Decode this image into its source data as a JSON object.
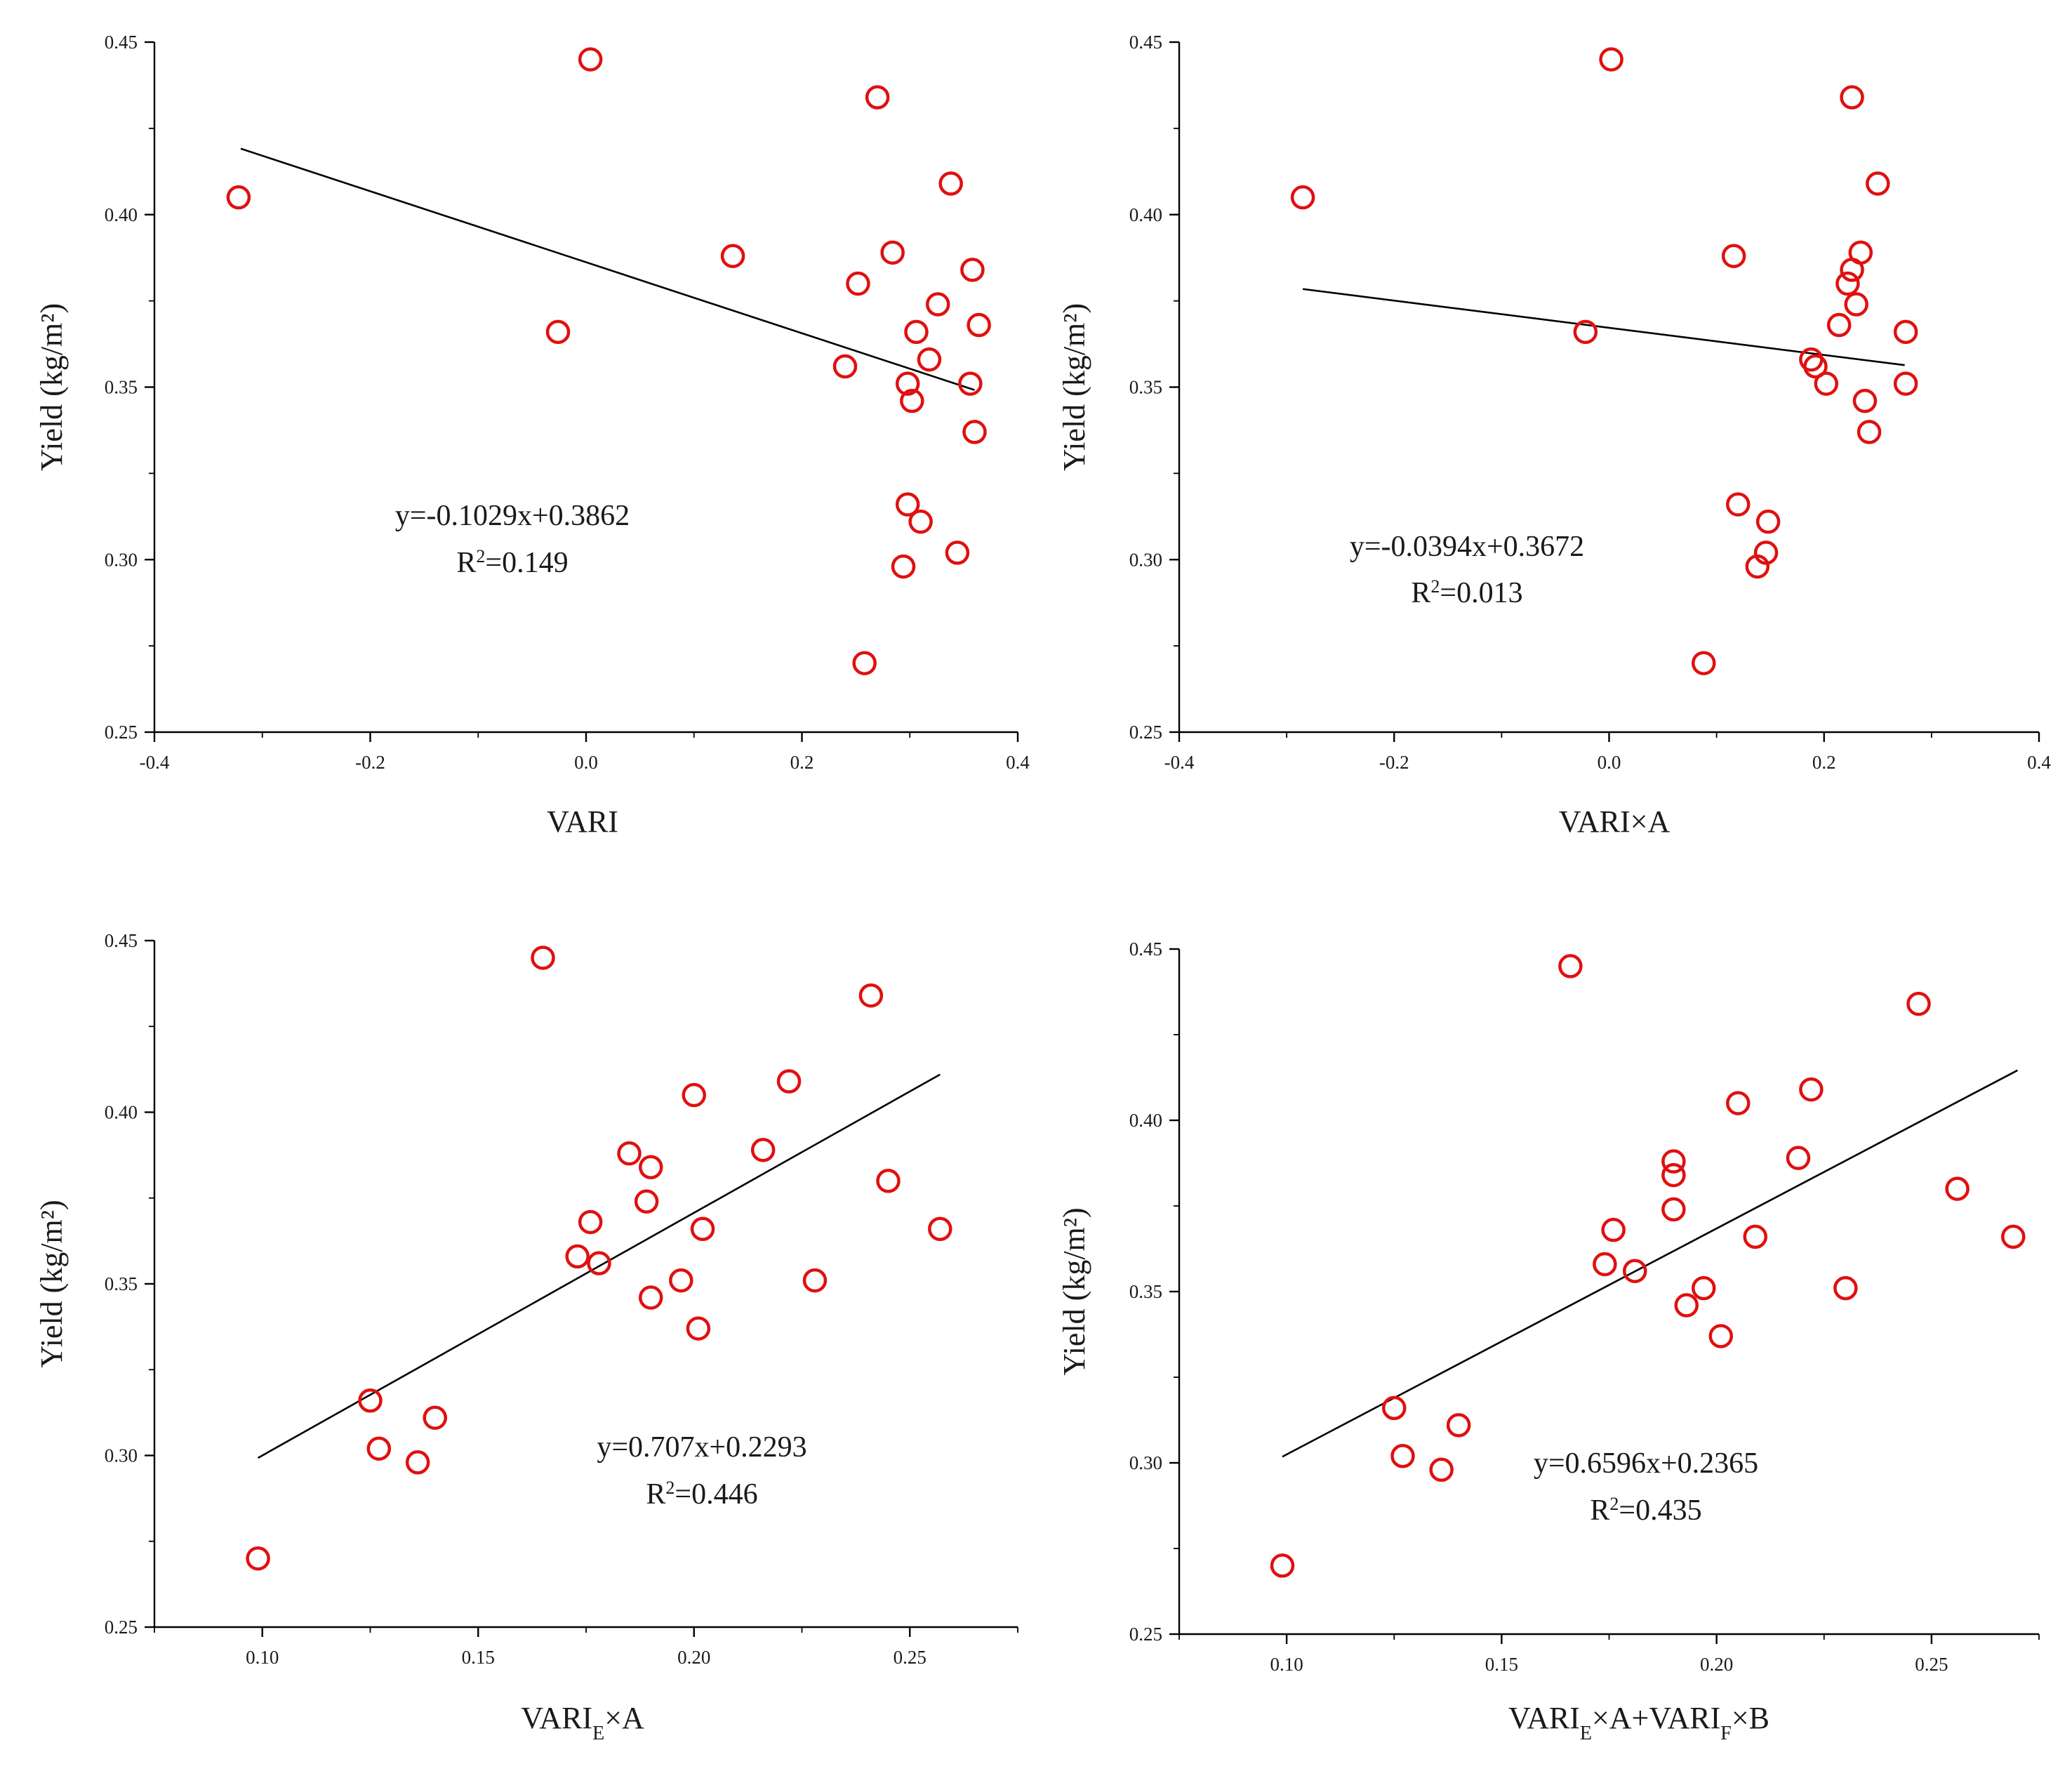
{
  "chart_data": [
    {
      "type": "scatter",
      "xlabel": "VARI",
      "ylabel": "Yield (kg/m²)",
      "xlim": [
        -0.4,
        0.4
      ],
      "ylim": [
        0.25,
        0.45
      ],
      "xticks": [
        "-0.4",
        "-0.2",
        "0.0",
        "0.2",
        "0.4"
      ],
      "yticks": [
        "0.25",
        "0.30",
        "0.35",
        "0.40",
        "0.45"
      ],
      "equation": "y=-0.1029x+0.3862",
      "r2_prefix": "R",
      "r2_sup": "2",
      "r2_suffix": "=0.149",
      "fit": {
        "slope": -0.1029,
        "intercept": 0.3862,
        "x_range": [
          -0.32,
          0.36
        ]
      },
      "points": [
        {
          "x": 0.004,
          "y": 0.445
        },
        {
          "x": -0.322,
          "y": 0.405
        },
        {
          "x": -0.026,
          "y": 0.366
        },
        {
          "x": 0.136,
          "y": 0.388
        },
        {
          "x": 0.27,
          "y": 0.434
        },
        {
          "x": 0.338,
          "y": 0.409
        },
        {
          "x": 0.284,
          "y": 0.389
        },
        {
          "x": 0.252,
          "y": 0.38
        },
        {
          "x": 0.358,
          "y": 0.384
        },
        {
          "x": 0.326,
          "y": 0.374
        },
        {
          "x": 0.306,
          "y": 0.366
        },
        {
          "x": 0.364,
          "y": 0.368
        },
        {
          "x": 0.24,
          "y": 0.356
        },
        {
          "x": 0.318,
          "y": 0.358
        },
        {
          "x": 0.298,
          "y": 0.351
        },
        {
          "x": 0.356,
          "y": 0.351
        },
        {
          "x": 0.302,
          "y": 0.346
        },
        {
          "x": 0.36,
          "y": 0.337
        },
        {
          "x": 0.298,
          "y": 0.316
        },
        {
          "x": 0.31,
          "y": 0.311
        },
        {
          "x": 0.294,
          "y": 0.298
        },
        {
          "x": 0.344,
          "y": 0.302
        },
        {
          "x": 0.258,
          "y": 0.27
        }
      ]
    },
    {
      "type": "scatter",
      "xlabel": "VARI×A",
      "ylabel": "Yield (kg/m²)",
      "xlim": [
        -0.4,
        0.4
      ],
      "ylim": [
        0.25,
        0.45
      ],
      "xticks": [
        "-0.4",
        "-0.2",
        "0.0",
        "0.2",
        "0.4"
      ],
      "yticks": [
        "0.25",
        "0.30",
        "0.35",
        "0.40",
        "0.45"
      ],
      "equation": "y=-0.0394x+0.3672",
      "r2_prefix": "R",
      "r2_sup": "2",
      "r2_suffix": "=0.013",
      "fit": {
        "slope": -0.0394,
        "intercept": 0.3672,
        "x_range": [
          -0.285,
          0.275
        ]
      },
      "points": [
        {
          "x": 0.002,
          "y": 0.445
        },
        {
          "x": -0.285,
          "y": 0.405
        },
        {
          "x": -0.022,
          "y": 0.366
        },
        {
          "x": 0.116,
          "y": 0.388
        },
        {
          "x": 0.226,
          "y": 0.434
        },
        {
          "x": 0.25,
          "y": 0.409
        },
        {
          "x": 0.234,
          "y": 0.389
        },
        {
          "x": 0.226,
          "y": 0.384
        },
        {
          "x": 0.222,
          "y": 0.38
        },
        {
          "x": 0.23,
          "y": 0.374
        },
        {
          "x": 0.214,
          "y": 0.368
        },
        {
          "x": 0.276,
          "y": 0.366
        },
        {
          "x": 0.188,
          "y": 0.358
        },
        {
          "x": 0.192,
          "y": 0.356
        },
        {
          "x": 0.202,
          "y": 0.351
        },
        {
          "x": 0.276,
          "y": 0.351
        },
        {
          "x": 0.238,
          "y": 0.346
        },
        {
          "x": 0.242,
          "y": 0.337
        },
        {
          "x": 0.12,
          "y": 0.316
        },
        {
          "x": 0.148,
          "y": 0.311
        },
        {
          "x": 0.146,
          "y": 0.302
        },
        {
          "x": 0.138,
          "y": 0.298
        },
        {
          "x": 0.088,
          "y": 0.27
        }
      ]
    },
    {
      "type": "scatter",
      "xlabel_main": "VARI",
      "xlabel_sub": "E",
      "xlabel_rest": "×A",
      "ylabel": "Yield (kg/m²)",
      "xlim": [
        0.075,
        0.275
      ],
      "ylim": [
        0.25,
        0.45
      ],
      "xticks": [
        "0.10",
        "0.15",
        "0.20",
        "0.25"
      ],
      "yticks": [
        "0.25",
        "0.30",
        "0.35",
        "0.40",
        "0.45"
      ],
      "equation": "y=0.707x+0.2293",
      "r2_prefix": "R",
      "r2_sup": "2",
      "r2_suffix": "=0.446",
      "fit": {
        "slope": 0.707,
        "intercept": 0.2293,
        "x_range": [
          0.099,
          0.257
        ]
      },
      "points": [
        {
          "x": 0.165,
          "y": 0.445
        },
        {
          "x": 0.241,
          "y": 0.434
        },
        {
          "x": 0.222,
          "y": 0.409
        },
        {
          "x": 0.2,
          "y": 0.405
        },
        {
          "x": 0.216,
          "y": 0.389
        },
        {
          "x": 0.185,
          "y": 0.388
        },
        {
          "x": 0.19,
          "y": 0.384
        },
        {
          "x": 0.245,
          "y": 0.38
        },
        {
          "x": 0.189,
          "y": 0.374
        },
        {
          "x": 0.176,
          "y": 0.368
        },
        {
          "x": 0.202,
          "y": 0.366
        },
        {
          "x": 0.257,
          "y": 0.366
        },
        {
          "x": 0.173,
          "y": 0.358
        },
        {
          "x": 0.178,
          "y": 0.356
        },
        {
          "x": 0.197,
          "y": 0.351
        },
        {
          "x": 0.228,
          "y": 0.351
        },
        {
          "x": 0.19,
          "y": 0.346
        },
        {
          "x": 0.201,
          "y": 0.337
        },
        {
          "x": 0.125,
          "y": 0.316
        },
        {
          "x": 0.14,
          "y": 0.311
        },
        {
          "x": 0.127,
          "y": 0.302
        },
        {
          "x": 0.136,
          "y": 0.298
        },
        {
          "x": 0.099,
          "y": 0.27
        }
      ]
    },
    {
      "type": "scatter",
      "xlabel_main": "VARI",
      "xlabel_sub": "E",
      "xlabel_rest": "×A+VARI",
      "xlabel_sub2": "F",
      "xlabel_rest2": "×B",
      "ylabel": "Yield (kg/m²)",
      "xlim": [
        0.075,
        0.275
      ],
      "ylim": [
        0.25,
        0.45
      ],
      "xticks": [
        "0.10",
        "0.15",
        "0.20",
        "0.25"
      ],
      "yticks": [
        "0.25",
        "0.30",
        "0.35",
        "0.40",
        "0.45"
      ],
      "equation": "y=0.6596x+0.2365",
      "r2_prefix": "R",
      "r2_sup": "2",
      "r2_suffix": "=0.435",
      "fit": {
        "slope": 0.6596,
        "intercept": 0.2365,
        "x_range": [
          0.099,
          0.27
        ]
      },
      "points": [
        {
          "x": 0.166,
          "y": 0.445
        },
        {
          "x": 0.247,
          "y": 0.434
        },
        {
          "x": 0.222,
          "y": 0.409
        },
        {
          "x": 0.205,
          "y": 0.405
        },
        {
          "x": 0.219,
          "y": 0.389
        },
        {
          "x": 0.19,
          "y": 0.388
        },
        {
          "x": 0.19,
          "y": 0.384
        },
        {
          "x": 0.256,
          "y": 0.38
        },
        {
          "x": 0.19,
          "y": 0.374
        },
        {
          "x": 0.176,
          "y": 0.368
        },
        {
          "x": 0.209,
          "y": 0.366
        },
        {
          "x": 0.269,
          "y": 0.366
        },
        {
          "x": 0.174,
          "y": 0.358
        },
        {
          "x": 0.181,
          "y": 0.356
        },
        {
          "x": 0.197,
          "y": 0.351
        },
        {
          "x": 0.23,
          "y": 0.351
        },
        {
          "x": 0.193,
          "y": 0.346
        },
        {
          "x": 0.201,
          "y": 0.337
        },
        {
          "x": 0.125,
          "y": 0.316
        },
        {
          "x": 0.14,
          "y": 0.311
        },
        {
          "x": 0.127,
          "y": 0.302
        },
        {
          "x": 0.136,
          "y": 0.298
        },
        {
          "x": 0.099,
          "y": 0.27
        }
      ]
    }
  ]
}
